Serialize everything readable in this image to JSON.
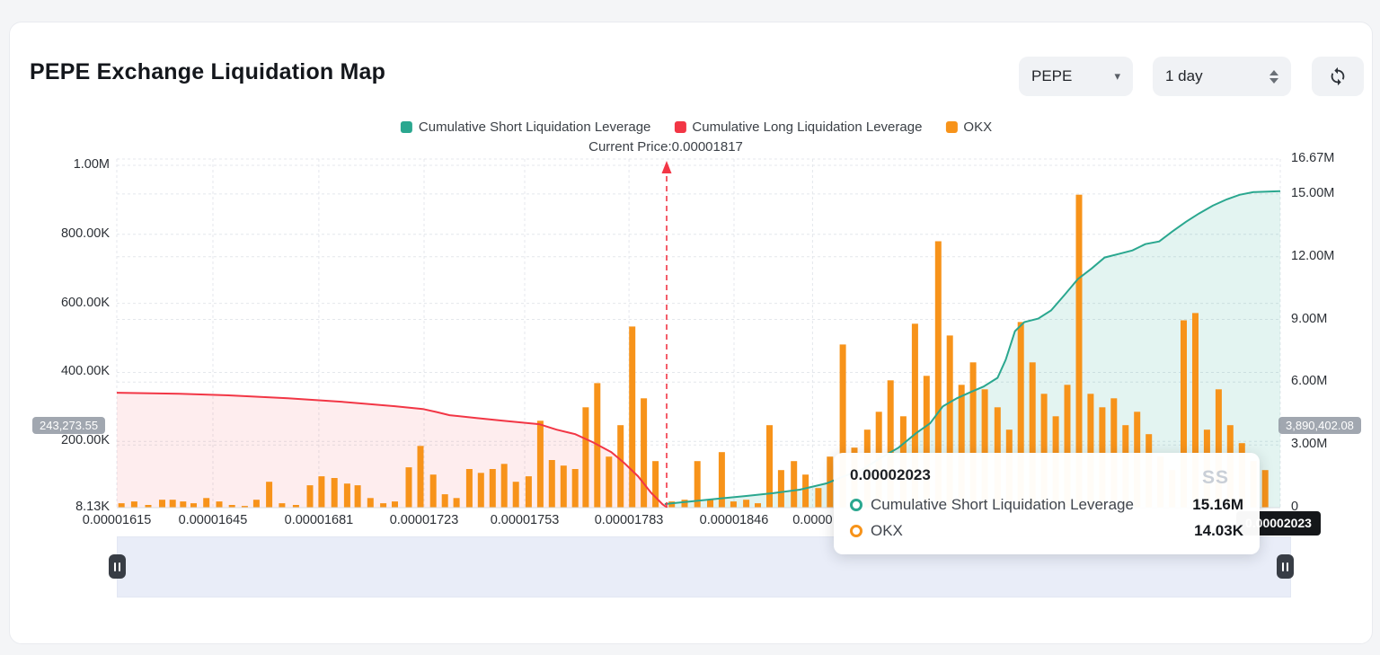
{
  "header": {
    "title": "PEPE Exchange Liquidation Map",
    "coin_select": "PEPE",
    "interval_select": "1 day"
  },
  "legend": [
    {
      "label": "Cumulative Short Liquidation Leverage",
      "color": "#2aa78f"
    },
    {
      "label": "Cumulative Long Liquidation Leverage",
      "color": "#f23645"
    },
    {
      "label": "OKX",
      "color": "#f7931a"
    }
  ],
  "tooltip": {
    "title": "0.00002023",
    "rows": [
      {
        "name": "Cumulative Short Liquidation Leverage",
        "value": "15.16M",
        "color": "#2aa78f"
      },
      {
        "name": "OKX",
        "value": "14.03K",
        "color": "#f7931a"
      }
    ]
  },
  "watermark": "SS",
  "chart_data": {
    "type": "bar+line",
    "title": "PEPE Exchange Liquidation Map",
    "current_price": {
      "label": "Current Price:0.00001817",
      "price": "0.00001817",
      "f": 0.4726
    },
    "pointer_label": {
      "text": "0.00002023"
    },
    "markers": {
      "long_total": "243,273.55",
      "short_total": "3,890,402.08"
    },
    "left_axis": {
      "unit": "K",
      "ticks": [
        {
          "text": "1.00M",
          "v": 1000
        },
        {
          "text": "800.00K",
          "v": 800
        },
        {
          "text": "600.00K",
          "v": 600
        },
        {
          "text": "400.00K",
          "v": 400
        },
        {
          "text": "200.00K",
          "v": 200
        },
        {
          "text": "8.13K",
          "v": 8.13
        }
      ]
    },
    "right_axis": {
      "unit": "M",
      "ticks": [
        {
          "text": "16.67M",
          "v": 16.67
        },
        {
          "text": "15.00M",
          "v": 15
        },
        {
          "text": "12.00M",
          "v": 12
        },
        {
          "text": "9.00M",
          "v": 9
        },
        {
          "text": "6.00M",
          "v": 6
        },
        {
          "text": "3.00M",
          "v": 3
        },
        {
          "text": "0",
          "v": 0
        }
      ]
    },
    "x_axis": {
      "labels": [
        {
          "text": "0.00001615",
          "f": 0.0
        },
        {
          "text": "0.00001645",
          "f": 0.0826
        },
        {
          "text": "0.00001681",
          "f": 0.1737
        },
        {
          "text": "0.00001723",
          "f": 0.2641
        },
        {
          "text": "0.00001753",
          "f": 0.3506
        },
        {
          "text": "0.00001783",
          "f": 0.4402
        },
        {
          "text": "0.00001846",
          "f": 0.5305
        },
        {
          "text": "0.0000",
          "f": 0.598
        }
      ]
    },
    "series": [
      {
        "name": "OKX",
        "type": "bar",
        "axis": "left",
        "color": "#f7931a",
        "points": [
          [
            0.004,
            21
          ],
          [
            0.015,
            26
          ],
          [
            0.027,
            16
          ],
          [
            0.039,
            31
          ],
          [
            0.048,
            31
          ],
          [
            0.057,
            26
          ],
          [
            0.066,
            21
          ],
          [
            0.077,
            36
          ],
          [
            0.088,
            26
          ],
          [
            0.099,
            16
          ],
          [
            0.11,
            13
          ],
          [
            0.12,
            31
          ],
          [
            0.131,
            83
          ],
          [
            0.142,
            21
          ],
          [
            0.154,
            16
          ],
          [
            0.166,
            73
          ],
          [
            0.176,
            99
          ],
          [
            0.187,
            94
          ],
          [
            0.198,
            78
          ],
          [
            0.207,
            73
          ],
          [
            0.218,
            36
          ],
          [
            0.229,
            21
          ],
          [
            0.239,
            26
          ],
          [
            0.251,
            125
          ],
          [
            0.261,
            187
          ],
          [
            0.272,
            104
          ],
          [
            0.282,
            47
          ],
          [
            0.292,
            36
          ],
          [
            0.303,
            120
          ],
          [
            0.313,
            109
          ],
          [
            0.323,
            120
          ],
          [
            0.333,
            135
          ],
          [
            0.343,
            83
          ],
          [
            0.354,
            99
          ],
          [
            0.364,
            260
          ],
          [
            0.374,
            146
          ],
          [
            0.384,
            130
          ],
          [
            0.394,
            120
          ],
          [
            0.403,
            299
          ],
          [
            0.413,
            369
          ],
          [
            0.423,
            156
          ],
          [
            0.433,
            247
          ],
          [
            0.443,
            533
          ],
          [
            0.453,
            325
          ],
          [
            0.463,
            143
          ],
          [
            0.477,
            26
          ],
          [
            0.488,
            31
          ],
          [
            0.499,
            143
          ],
          [
            0.51,
            31
          ],
          [
            0.52,
            169
          ],
          [
            0.53,
            26
          ],
          [
            0.541,
            31
          ],
          [
            0.551,
            21
          ],
          [
            0.561,
            247
          ],
          [
            0.571,
            117
          ],
          [
            0.582,
            143
          ],
          [
            0.592,
            104
          ],
          [
            0.603,
            65
          ],
          [
            0.613,
            156
          ],
          [
            0.624,
            481
          ],
          [
            0.634,
            182
          ],
          [
            0.645,
            234
          ],
          [
            0.655,
            286
          ],
          [
            0.665,
            377
          ],
          [
            0.676,
            273
          ],
          [
            0.686,
            541
          ],
          [
            0.696,
            390
          ],
          [
            0.706,
            780
          ],
          [
            0.716,
            507
          ],
          [
            0.726,
            364
          ],
          [
            0.736,
            429
          ],
          [
            0.746,
            351
          ],
          [
            0.757,
            299
          ],
          [
            0.767,
            234
          ],
          [
            0.777,
            546
          ],
          [
            0.787,
            429
          ],
          [
            0.797,
            338
          ],
          [
            0.807,
            273
          ],
          [
            0.817,
            364
          ],
          [
            0.827,
            915
          ],
          [
            0.837,
            338
          ],
          [
            0.847,
            299
          ],
          [
            0.857,
            325
          ],
          [
            0.867,
            247
          ],
          [
            0.877,
            286
          ],
          [
            0.887,
            221
          ],
          [
            0.897,
            156
          ],
          [
            0.907,
            117
          ],
          [
            0.917,
            551
          ],
          [
            0.927,
            572
          ],
          [
            0.937,
            234
          ],
          [
            0.947,
            351
          ],
          [
            0.957,
            247
          ],
          [
            0.967,
            195
          ],
          [
            0.977,
            143
          ],
          [
            0.987,
            117
          ]
        ]
      },
      {
        "name": "Cumulative Long Liquidation Leverage",
        "type": "line",
        "axis": "left",
        "color": "#f23645",
        "fill": "rgba(242,54,69,0.09)",
        "points": [
          [
            0.0,
            341
          ],
          [
            0.054,
            338
          ],
          [
            0.1,
            333
          ],
          [
            0.147,
            325
          ],
          [
            0.193,
            315
          ],
          [
            0.239,
            302
          ],
          [
            0.263,
            294
          ],
          [
            0.275,
            285
          ],
          [
            0.286,
            276
          ],
          [
            0.309,
            268
          ],
          [
            0.332,
            260
          ],
          [
            0.363,
            250
          ],
          [
            0.378,
            234
          ],
          [
            0.394,
            221
          ],
          [
            0.409,
            198
          ],
          [
            0.425,
            169
          ],
          [
            0.436,
            138
          ],
          [
            0.448,
            99
          ],
          [
            0.459,
            52
          ],
          [
            0.469,
            18
          ],
          [
            0.473,
            8
          ]
        ]
      },
      {
        "name": "Cumulative Short Liquidation Leverage",
        "type": "line",
        "axis": "right",
        "color": "#2aa78f",
        "fill": "rgba(42,167,143,0.13)",
        "points": [
          [
            0.471,
            0.17
          ],
          [
            0.494,
            0.3
          ],
          [
            0.517,
            0.43
          ],
          [
            0.541,
            0.56
          ],
          [
            0.564,
            0.69
          ],
          [
            0.587,
            0.86
          ],
          [
            0.61,
            1.16
          ],
          [
            0.625,
            1.5
          ],
          [
            0.641,
            1.84
          ],
          [
            0.656,
            2.36
          ],
          [
            0.672,
            2.87
          ],
          [
            0.687,
            3.56
          ],
          [
            0.699,
            4.03
          ],
          [
            0.71,
            4.84
          ],
          [
            0.722,
            5.23
          ],
          [
            0.734,
            5.53
          ],
          [
            0.745,
            5.79
          ],
          [
            0.757,
            6.21
          ],
          [
            0.764,
            7.07
          ],
          [
            0.772,
            8.44
          ],
          [
            0.78,
            8.87
          ],
          [
            0.792,
            9.04
          ],
          [
            0.803,
            9.43
          ],
          [
            0.815,
            10.2
          ],
          [
            0.826,
            10.93
          ],
          [
            0.838,
            11.44
          ],
          [
            0.849,
            11.96
          ],
          [
            0.861,
            12.13
          ],
          [
            0.873,
            12.3
          ],
          [
            0.884,
            12.6
          ],
          [
            0.896,
            12.73
          ],
          [
            0.907,
            13.2
          ],
          [
            0.919,
            13.67
          ],
          [
            0.93,
            14.06
          ],
          [
            0.942,
            14.44
          ],
          [
            0.954,
            14.74
          ],
          [
            0.965,
            14.96
          ],
          [
            0.977,
            15.09
          ],
          [
            1.0,
            15.13
          ]
        ]
      }
    ]
  }
}
